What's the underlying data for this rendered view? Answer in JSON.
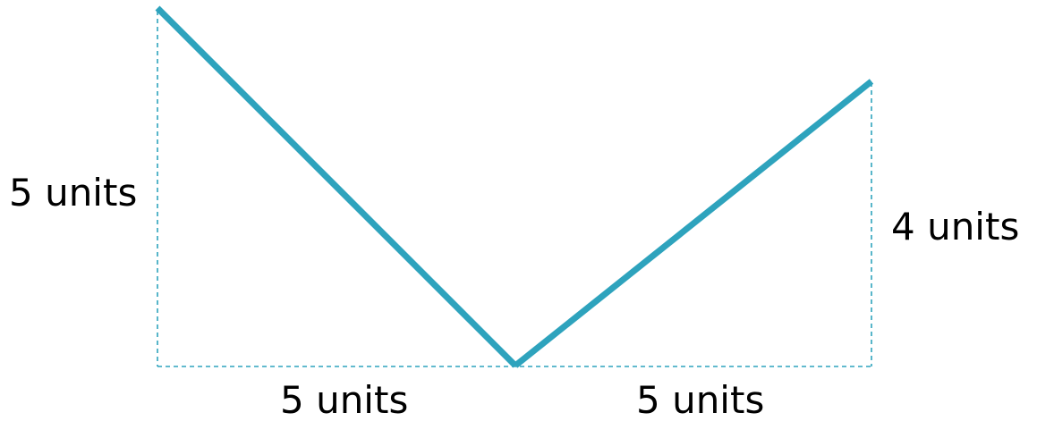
{
  "colors": {
    "line": "#2ea3bd",
    "guide": "#2ea3bd",
    "text": "#000000"
  },
  "labels": {
    "left_height": "5 units",
    "right_height": "4 units",
    "left_base": "5 units",
    "right_base": "5 units"
  },
  "segments": [
    {
      "from": "top-left",
      "to": "bottom-vertex",
      "rise": 5,
      "run": 5
    },
    {
      "from": "bottom-vertex",
      "to": "top-right",
      "rise": 4,
      "run": 5
    }
  ]
}
